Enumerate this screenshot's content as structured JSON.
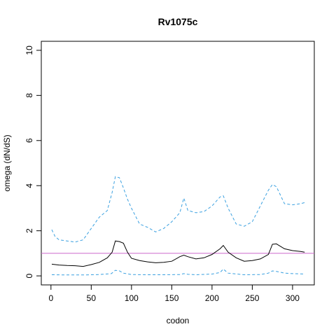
{
  "chart_data": {
    "type": "line",
    "title": "Rv1075c",
    "xlabel": "codon",
    "ylabel": "omega (dN/dS)",
    "xlim": [
      -12,
      327
    ],
    "ylim": [
      -0.4,
      10.4
    ],
    "xticks": [
      0,
      50,
      100,
      150,
      200,
      250,
      300
    ],
    "yticks": [
      0,
      2,
      4,
      6,
      8,
      10
    ],
    "grid": false,
    "reference_line": {
      "y": 1,
      "color": "#cc66cc"
    },
    "colors": {
      "median": "#000000",
      "ci": "#3aa0e0"
    },
    "series": [
      {
        "role": "median",
        "style": "solid",
        "x": [
          1,
          10,
          20,
          30,
          40,
          50,
          60,
          70,
          76,
          80,
          85,
          90,
          95,
          100,
          110,
          120,
          130,
          140,
          150,
          160,
          165,
          170,
          180,
          190,
          200,
          210,
          214,
          220,
          230,
          240,
          250,
          260,
          270,
          275,
          280,
          290,
          300,
          310,
          315
        ],
        "y": [
          0.52,
          0.48,
          0.46,
          0.45,
          0.42,
          0.5,
          0.6,
          0.8,
          1.05,
          1.55,
          1.52,
          1.45,
          1.05,
          0.78,
          0.68,
          0.62,
          0.58,
          0.6,
          0.65,
          0.85,
          0.92,
          0.85,
          0.75,
          0.8,
          0.95,
          1.2,
          1.35,
          1.05,
          0.8,
          0.65,
          0.68,
          0.75,
          0.95,
          1.4,
          1.42,
          1.2,
          1.12,
          1.08,
          1.05
        ]
      },
      {
        "role": "upper",
        "style": "dashed",
        "x": [
          1,
          5,
          10,
          20,
          30,
          40,
          50,
          60,
          70,
          76,
          80,
          85,
          90,
          95,
          100,
          110,
          120,
          130,
          140,
          150,
          160,
          165,
          170,
          180,
          190,
          200,
          210,
          214,
          220,
          230,
          240,
          250,
          260,
          270,
          275,
          280,
          290,
          300,
          310,
          315
        ],
        "y": [
          2.05,
          1.75,
          1.6,
          1.55,
          1.5,
          1.6,
          2.1,
          2.6,
          2.9,
          3.7,
          4.4,
          4.35,
          3.9,
          3.4,
          3.0,
          2.3,
          2.15,
          1.95,
          2.1,
          2.4,
          2.8,
          3.45,
          2.9,
          2.8,
          2.85,
          3.1,
          3.5,
          3.55,
          3.0,
          2.3,
          2.2,
          2.4,
          3.1,
          3.8,
          4.05,
          3.95,
          3.2,
          3.15,
          3.2,
          3.25
        ]
      },
      {
        "role": "lower",
        "style": "dashed",
        "x": [
          1,
          20,
          40,
          60,
          75,
          80,
          85,
          90,
          100,
          120,
          140,
          160,
          165,
          170,
          180,
          200,
          210,
          214,
          220,
          240,
          260,
          270,
          275,
          280,
          290,
          300,
          315
        ],
        "y": [
          0.05,
          0.04,
          0.04,
          0.06,
          0.1,
          0.25,
          0.22,
          0.12,
          0.06,
          0.05,
          0.05,
          0.06,
          0.1,
          0.07,
          0.05,
          0.08,
          0.15,
          0.3,
          0.12,
          0.05,
          0.06,
          0.12,
          0.22,
          0.2,
          0.12,
          0.1,
          0.08
        ]
      }
    ]
  }
}
